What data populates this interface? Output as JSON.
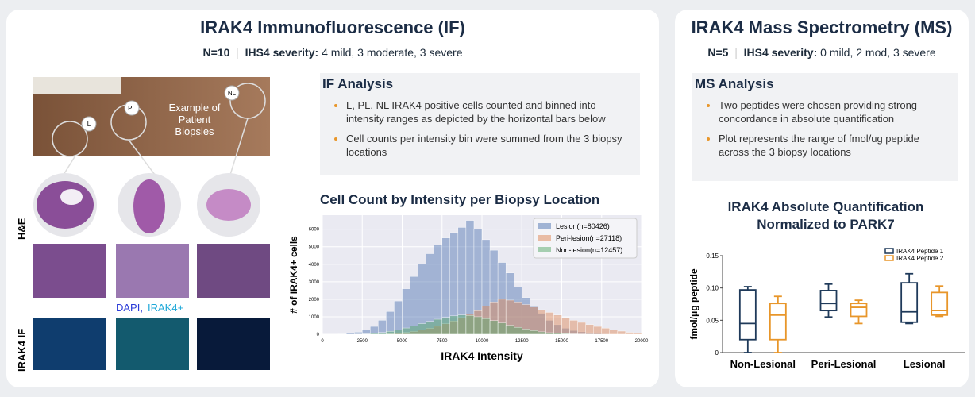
{
  "if_panel": {
    "title": "IRAK4 Immunofluorescence (IF)",
    "n": "N=10",
    "severity_label": "IHS4 severity:",
    "severity": "4 mild, 3 moderate, 3 severe",
    "photo_labels": [
      "L",
      "PL",
      "NL"
    ],
    "photo_caption": "Example of Patient Biopsies",
    "he_label": "H&E",
    "if_label": "IRAK4 IF",
    "stain_dapi": "DAPI,",
    "stain_irak4": "IRAK4+",
    "analysis_title": "IF Analysis",
    "bullets": [
      "L, PL, NL IRAK4 positive cells counted and binned into intensity ranges as depicted by the horizontal bars below",
      "Cell counts per intensity bin were summed from the 3 biopsy locations"
    ]
  },
  "ms_panel": {
    "title": "IRAK4 Mass Spectrometry (MS)",
    "n": "N=5",
    "severity_label": "IHS4 severity:",
    "severity": "0 mild, 2 mod, 3 severe",
    "analysis_title": "MS Analysis",
    "bullets": [
      "Two peptides were chosen providing strong concordance in absolute quantification",
      "Plot represents the range of fmol/ug peptide across the 3 biopsy locations"
    ]
  },
  "chart_data": [
    {
      "type": "histogram",
      "title": "Cell Count by Intensity per Biopsy Location",
      "x_label": "IRAK4 Intensity",
      "y_label": "# of IRAK4+ cells",
      "bins": [
        0,
        500,
        1000,
        1500,
        2000,
        2500,
        3000,
        3500,
        4000,
        4500,
        5000,
        5500,
        6000,
        6500,
        7000,
        7500,
        8000,
        8500,
        9000,
        9500,
        10000,
        10500,
        11000,
        11500,
        12000,
        12500,
        13000,
        13500,
        14000,
        14500,
        15000,
        15500,
        16000,
        16500,
        17000,
        17500,
        18000,
        18500,
        19000,
        19500,
        20000
      ],
      "series": [
        {
          "name": "Lesion(n=80426)",
          "color": "#4c72b0",
          "values": [
            0,
            0,
            20,
            60,
            120,
            250,
            450,
            800,
            1300,
            1900,
            2600,
            3300,
            4000,
            4600,
            5100,
            5500,
            5800,
            6100,
            6500,
            6000,
            5400,
            4800,
            4100,
            3500,
            2700,
            2100,
            1600,
            1200,
            800,
            550,
            350,
            220,
            140,
            90,
            50,
            30,
            20,
            10,
            5,
            0
          ]
        },
        {
          "name": "Peri-lesion(n=27118)",
          "color": "#dd8452",
          "values": [
            0,
            0,
            0,
            0,
            0,
            0,
            0,
            10,
            30,
            60,
            100,
            160,
            240,
            340,
            460,
            600,
            760,
            950,
            1150,
            1350,
            1600,
            1850,
            2000,
            1950,
            1850,
            1700,
            1550,
            1400,
            1250,
            1100,
            950,
            800,
            680,
            560,
            450,
            350,
            260,
            180,
            110,
            60
          ]
        },
        {
          "name": "Non-lesion(n=12457)",
          "color": "#55a868",
          "values": [
            0,
            0,
            0,
            0,
            5,
            20,
            50,
            100,
            170,
            260,
            360,
            480,
            610,
            740,
            860,
            960,
            1050,
            1100,
            1080,
            1000,
            900,
            780,
            650,
            520,
            400,
            300,
            210,
            140,
            90,
            60,
            35,
            20,
            10,
            5,
            0,
            0,
            0,
            0,
            0,
            0
          ]
        }
      ],
      "xlim": [
        0,
        20000
      ],
      "xticks": [
        0,
        2500,
        5000,
        7500,
        10000,
        12500,
        15000,
        17500,
        20000
      ],
      "ylim": [
        0,
        6800
      ],
      "yticks": [
        0,
        1000,
        2000,
        3000,
        4000,
        5000,
        6000
      ],
      "grid": true,
      "legend": "upper-right"
    },
    {
      "type": "box",
      "title_lines": [
        "IRAK4 Absolute Quantification",
        "Normalized to PARK7"
      ],
      "y_label": "fmol/μg peptide",
      "categories": [
        "Non-Lesional",
        "Peri-Lesional",
        "Lesional"
      ],
      "series": [
        {
          "name": "IRAK4 Peptide 1",
          "color": "#1f3a5a",
          "values": [
            {
              "min": 0.0,
              "q1": 0.02,
              "median": 0.045,
              "q3": 0.097,
              "max": 0.102
            },
            {
              "min": 0.055,
              "q1": 0.065,
              "median": 0.076,
              "q3": 0.096,
              "max": 0.106
            },
            {
              "min": 0.045,
              "q1": 0.047,
              "median": 0.063,
              "q3": 0.108,
              "max": 0.122
            }
          ]
        },
        {
          "name": "IRAK4 Peptide 2",
          "color": "#e8962a",
          "values": [
            {
              "min": 0.0,
              "q1": 0.02,
              "median": 0.058,
              "q3": 0.076,
              "max": 0.087
            },
            {
              "min": 0.045,
              "q1": 0.056,
              "median": 0.07,
              "q3": 0.076,
              "max": 0.081
            },
            {
              "min": 0.056,
              "q1": 0.058,
              "median": 0.065,
              "q3": 0.093,
              "max": 0.103
            }
          ]
        }
      ],
      "ylim": [
        0,
        0.15
      ],
      "yticks": [
        0,
        0.05,
        {
          "value": 0.1,
          "label": "0.10"
        },
        0.15
      ],
      "legend": "upper-right"
    }
  ]
}
